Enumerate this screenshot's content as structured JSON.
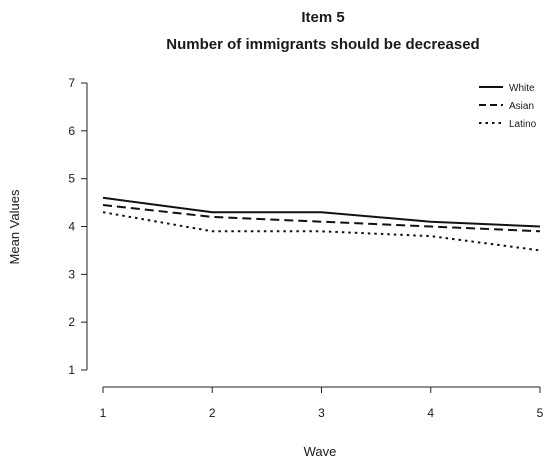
{
  "chart_data": {
    "type": "line",
    "title": "Item 5",
    "subtitle": "Number of immigrants should be decreased",
    "xlabel": "Wave",
    "ylabel": "Mean Values",
    "x": [
      1,
      2,
      3,
      4,
      5
    ],
    "x_ticks": [
      "1",
      "2",
      "3",
      "4",
      "5"
    ],
    "y_ticks": [
      "1",
      "2",
      "3",
      "4",
      "5",
      "6",
      "7"
    ],
    "ylim": [
      1,
      7
    ],
    "xlim": [
      1,
      5
    ],
    "grid": false,
    "legend_position": "top-right",
    "series": [
      {
        "name": "White",
        "values": [
          4.6,
          4.3,
          4.3,
          4.1,
          4.0
        ],
        "line_style": "solid"
      },
      {
        "name": "Asian",
        "values": [
          4.45,
          4.2,
          4.1,
          4.0,
          3.9
        ],
        "line_style": "dashed"
      },
      {
        "name": "Latino",
        "values": [
          4.3,
          3.9,
          3.9,
          3.8,
          3.5
        ],
        "line_style": "dotted"
      }
    ],
    "line_color": "#111111"
  }
}
